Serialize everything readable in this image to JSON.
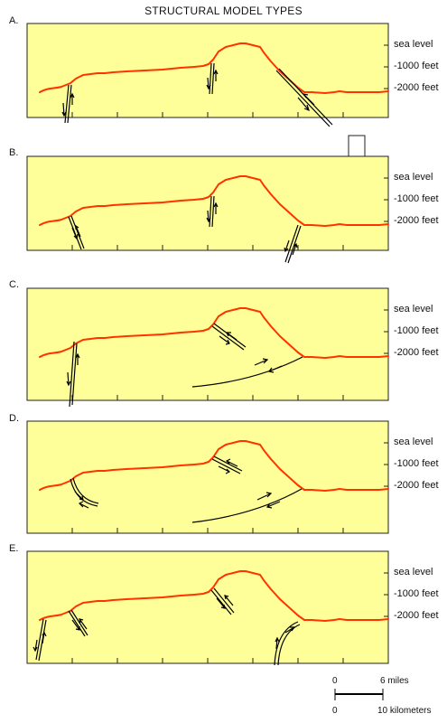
{
  "title": "STRUCTURAL MODEL TYPES",
  "panels": [
    {
      "label": "A.",
      "elevations": [
        "sea level",
        "-1000 feet",
        "-2000 feet"
      ]
    },
    {
      "label": "B.",
      "elevations": [
        "sea level",
        "-1000 feet",
        "-2000 feet"
      ]
    },
    {
      "label": "C.",
      "elevations": [
        "sea level",
        "-1000 feet",
        "-2000 feet"
      ]
    },
    {
      "label": "D.",
      "elevations": [
        "sea level",
        "-1000 feet",
        "-2000 feet"
      ]
    },
    {
      "label": "E.",
      "elevations": [
        "sea level",
        "-1000 feet",
        "-2000 feet"
      ]
    }
  ],
  "scale": {
    "miles_zero": "0",
    "miles_value": "6 miles",
    "km_zero": "0",
    "km_value": "10 kilometers"
  },
  "colors": {
    "panel_fill": "#ffff99",
    "surface_line": "#ff3300",
    "fault_line": "#000000"
  }
}
